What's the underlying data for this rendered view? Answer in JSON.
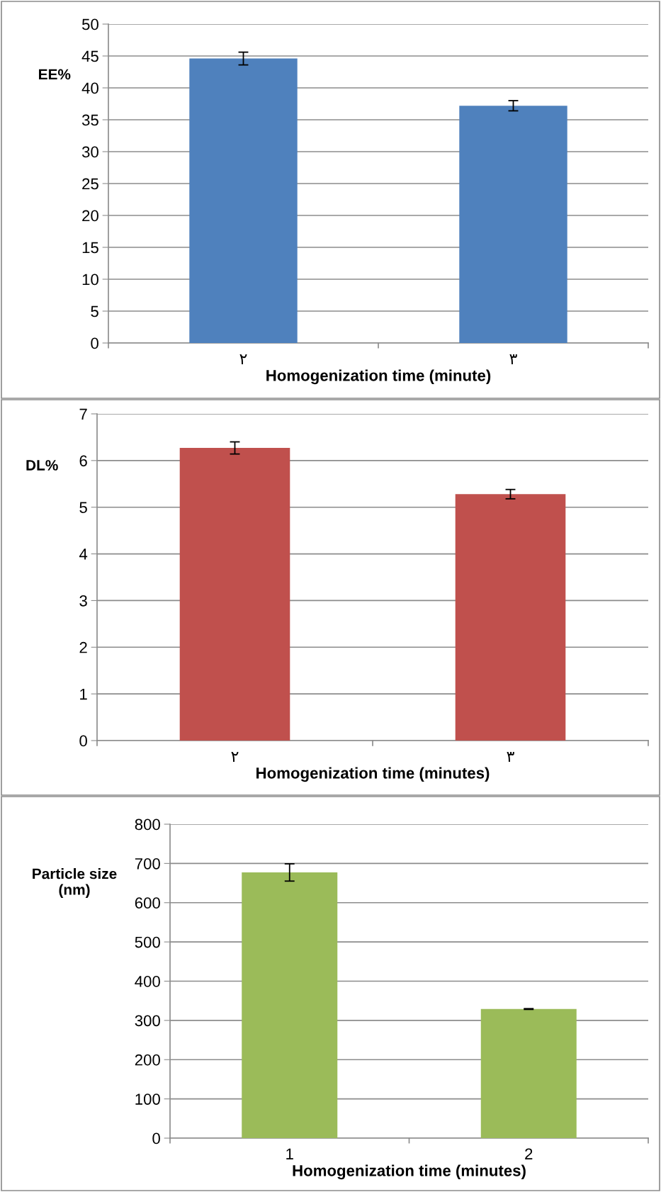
{
  "chart_data": [
    {
      "type": "bar",
      "ylabel": "EE%",
      "xlabel": "Homogenization time (minute)",
      "categories": [
        "٢",
        "٣"
      ],
      "values": [
        44.6,
        37.2
      ],
      "errors": [
        1.0,
        0.8
      ],
      "color": "#4f81bd",
      "ylim": [
        0,
        50
      ],
      "yticks": [
        0,
        5,
        10,
        15,
        20,
        25,
        30,
        35,
        40,
        45,
        50
      ],
      "grid": "y"
    },
    {
      "type": "bar",
      "ylabel": "DL%",
      "xlabel": "Homogenization time (minutes)",
      "categories": [
        "٢",
        "٣"
      ],
      "values": [
        6.27,
        5.28
      ],
      "errors": [
        0.13,
        0.1
      ],
      "color": "#c0504d",
      "ylim": [
        0,
        7
      ],
      "yticks": [
        0,
        1,
        2,
        3,
        4,
        5,
        6,
        7
      ],
      "grid": "y"
    },
    {
      "type": "bar",
      "ylabel": "Particle size\n(nm)",
      "xlabel": "Homogenization time (minutes)",
      "categories": [
        "1",
        "2"
      ],
      "values": [
        677,
        329
      ],
      "errors": [
        22,
        1
      ],
      "color": "#9bbb59",
      "ylim": [
        0,
        800
      ],
      "yticks": [
        0,
        100,
        200,
        300,
        400,
        500,
        600,
        700,
        800
      ],
      "grid": "y"
    }
  ]
}
